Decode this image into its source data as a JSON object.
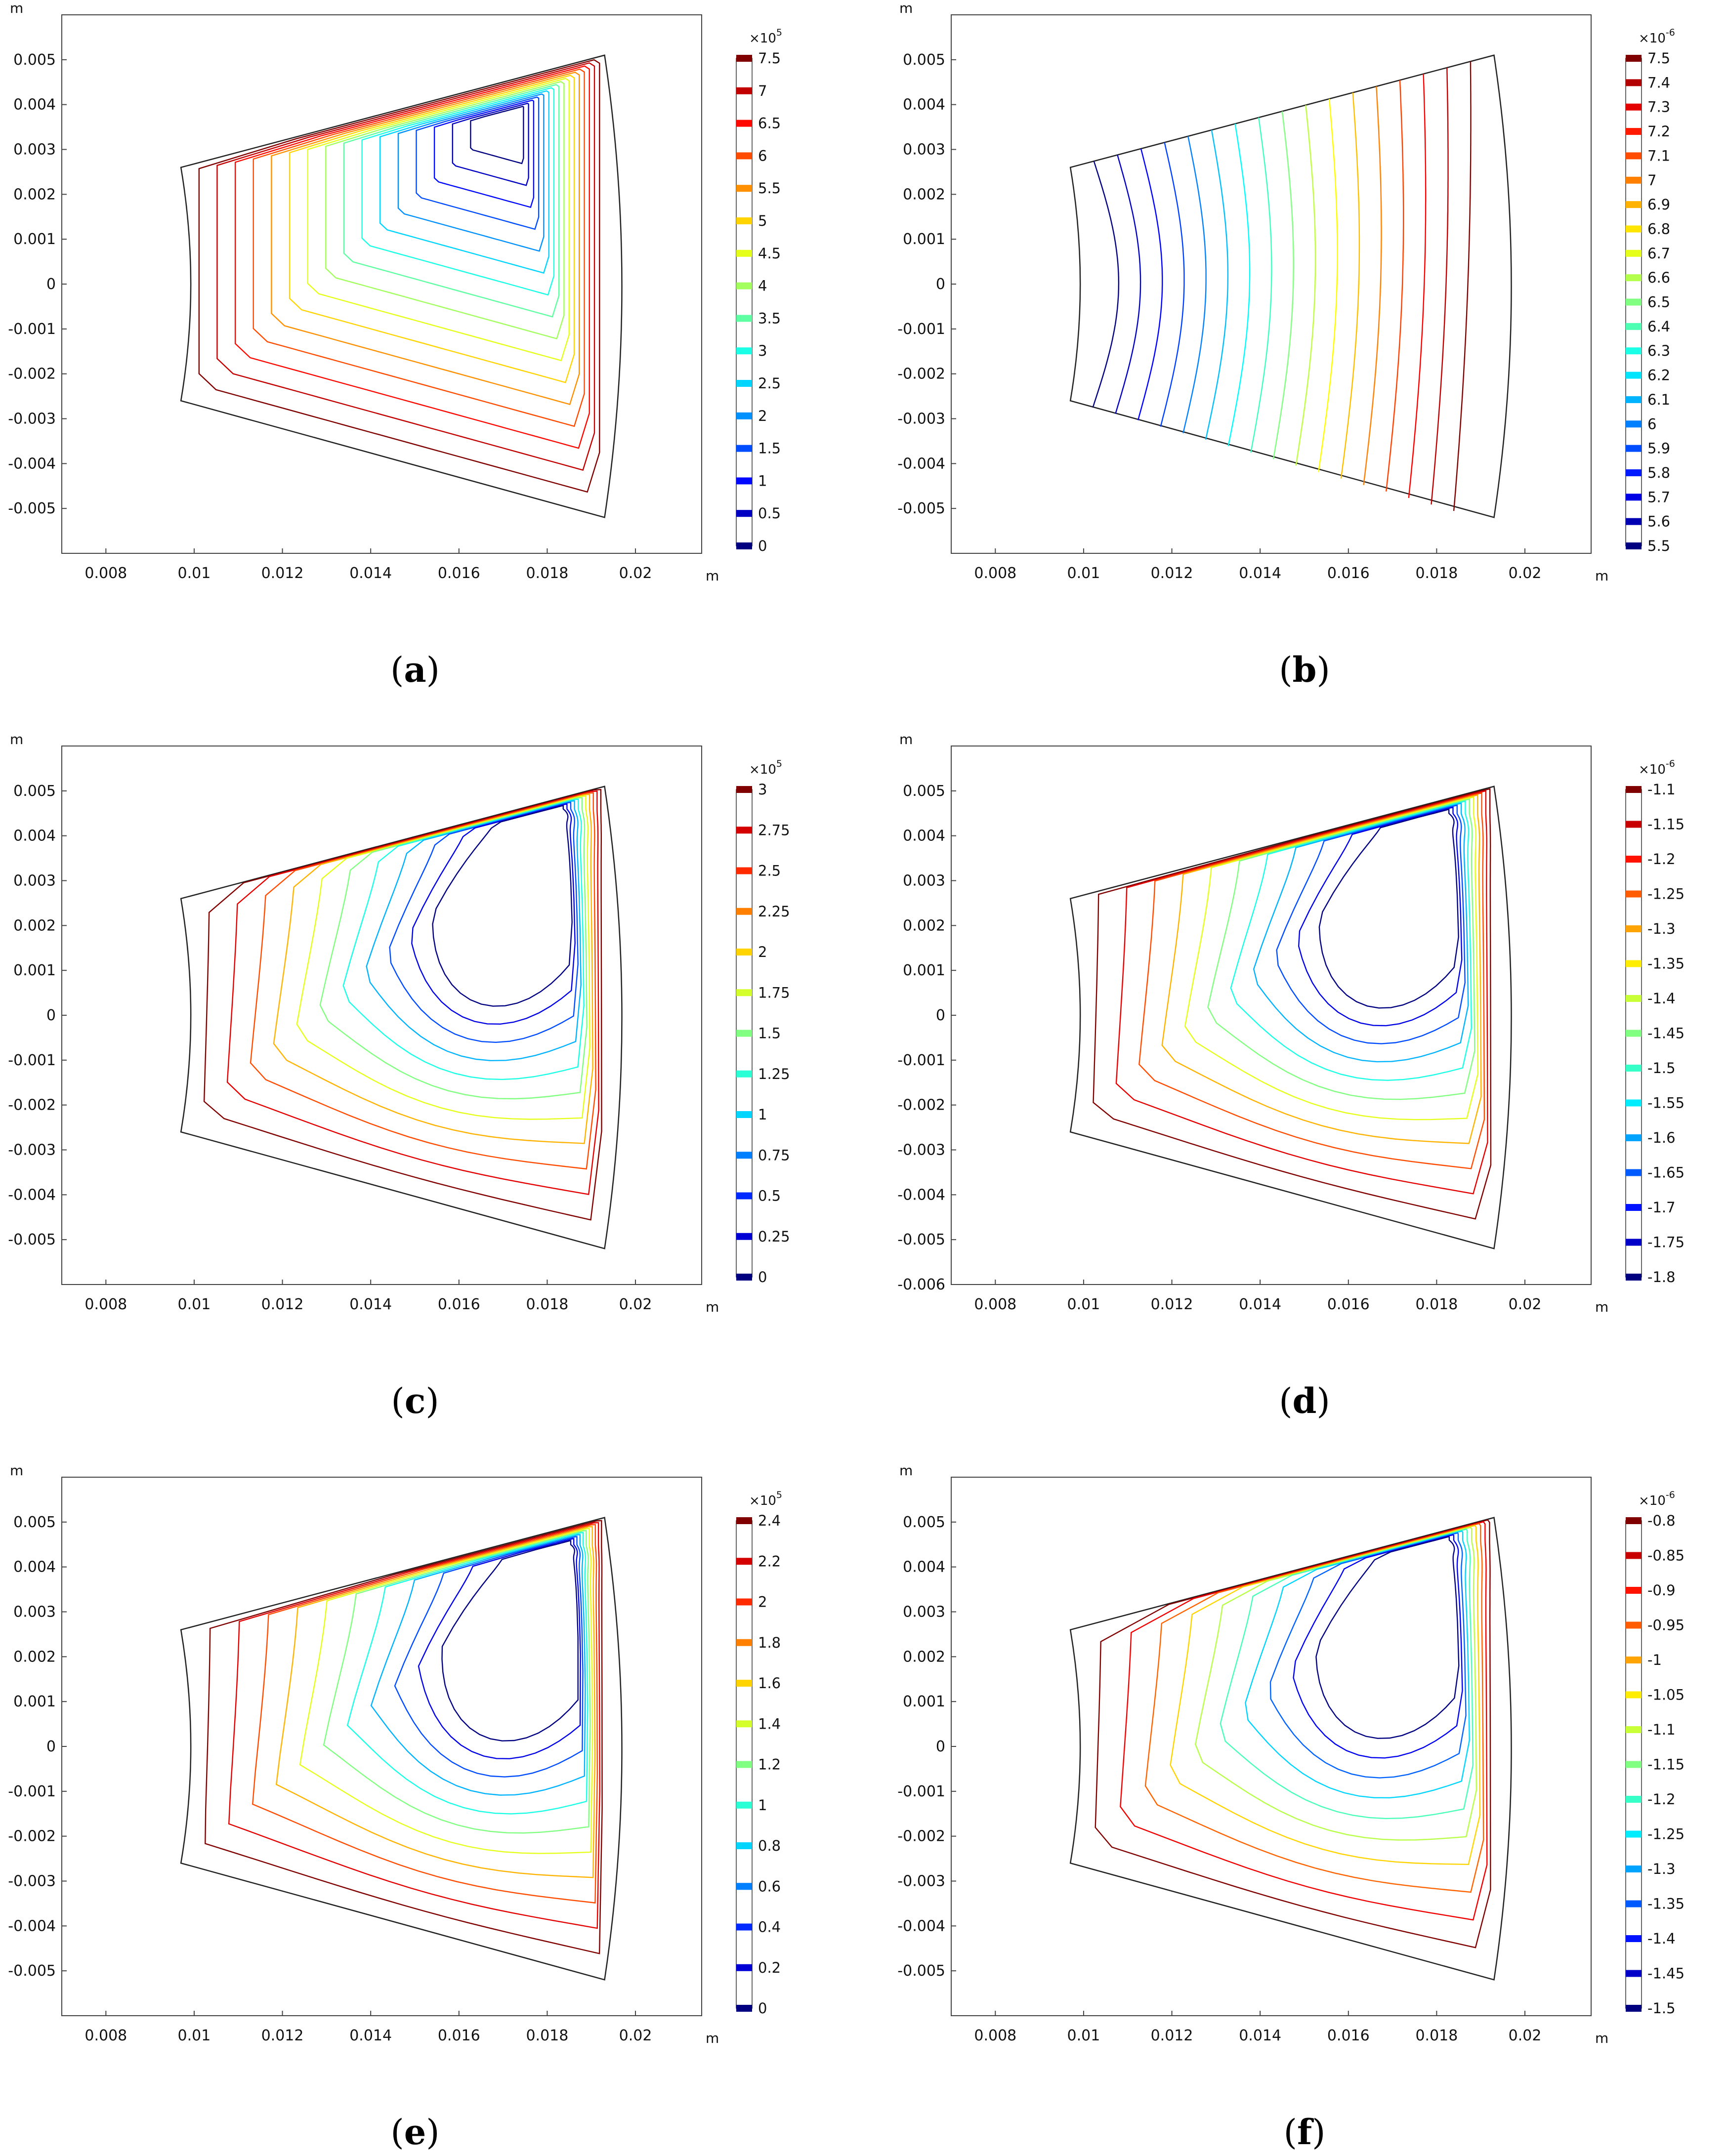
{
  "figure": {
    "unit_label": "m"
  },
  "chart_data": [
    {
      "panel": "a",
      "caption_letter": "a",
      "type": "contour",
      "xlim": [
        0.007,
        0.0215
      ],
      "ylim": [
        -0.006,
        0.006
      ],
      "xticks": [
        "0.008",
        "0.01",
        "0.012",
        "0.014",
        "0.016",
        "0.018",
        "0.02"
      ],
      "yticks": [
        "0.005",
        "0.004",
        "0.003",
        "0.002",
        "0.001",
        "0",
        "-0.001",
        "-0.002",
        "-0.003",
        "-0.004",
        "-0.005"
      ],
      "xlabel": "m",
      "ylabel": "m",
      "colorbar": {
        "exponent_text": "×10",
        "exponent": "5",
        "levels": [
          "7.5",
          "7",
          "6.5",
          "6",
          "5.5",
          "5",
          "4.5",
          "4",
          "3.5",
          "3",
          "2.5",
          "2",
          "1.5",
          "1",
          "0.5",
          "0"
        ]
      },
      "pattern": "core",
      "cx": 0.0172,
      "cy": 0.0038,
      "nContours": 16
    },
    {
      "panel": "b",
      "caption_letter": "b",
      "type": "contour",
      "xlim": [
        0.007,
        0.0215
      ],
      "ylim": [
        -0.006,
        0.006
      ],
      "xticks": [
        "0.008",
        "0.01",
        "0.012",
        "0.014",
        "0.016",
        "0.018",
        "0.02"
      ],
      "yticks": [
        "0.005",
        "0.004",
        "0.003",
        "0.002",
        "0.001",
        "0",
        "-0.001",
        "-0.002",
        "-0.003",
        "-0.004",
        "-0.005"
      ],
      "xlabel": "m",
      "ylabel": "m",
      "colorbar": {
        "exponent_text": "×10",
        "exponent": "-6",
        "levels": [
          "7.5",
          "7.4",
          "7.3",
          "7.2",
          "7.1",
          "7",
          "6.9",
          "6.8",
          "6.7",
          "6.6",
          "6.5",
          "6.4",
          "6.3",
          "6.2",
          "6.1",
          "6",
          "5.9",
          "5.8",
          "5.7",
          "5.6",
          "5.5"
        ]
      },
      "pattern": "vertical",
      "nContours": 17
    },
    {
      "panel": "c",
      "caption_letter": "c",
      "type": "contour",
      "xlim": [
        0.007,
        0.0215
      ],
      "ylim": [
        -0.006,
        0.006
      ],
      "xticks": [
        "0.008",
        "0.01",
        "0.012",
        "0.014",
        "0.016",
        "0.018",
        "0.02"
      ],
      "yticks": [
        "0.005",
        "0.004",
        "0.003",
        "0.002",
        "0.001",
        "0",
        "-0.001",
        "-0.002",
        "-0.003",
        "-0.004",
        "-0.005"
      ],
      "xlabel": "m",
      "ylabel": "m",
      "colorbar": {
        "exponent_text": "×10",
        "exponent": "5",
        "levels": [
          "3",
          "2.75",
          "2.5",
          "2.25",
          "2",
          "1.75",
          "1.5",
          "1.25",
          "1",
          "0.75",
          "0.5",
          "0.25",
          "0"
        ]
      },
      "pattern": "u",
      "cx": 0.0182,
      "cy": 0.0046,
      "nContours": 11
    },
    {
      "panel": "d",
      "caption_letter": "d",
      "type": "contour",
      "xlim": [
        0.007,
        0.0215
      ],
      "ylim": [
        -0.006,
        0.006
      ],
      "xticks": [
        "0.008",
        "0.01",
        "0.012",
        "0.014",
        "0.016",
        "0.018",
        "0.02"
      ],
      "yticks": [
        "0.005",
        "0.004",
        "0.003",
        "0.002",
        "0.001",
        "0",
        "-0.001",
        "-0.002",
        "-0.003",
        "-0.004",
        "-0.005",
        "-0.006"
      ],
      "xlabel": "m",
      "ylabel": "m",
      "colorbar": {
        "exponent_text": "×10",
        "exponent": "-6",
        "levels": [
          "-1.1",
          "-1.15",
          "-1.2",
          "-1.25",
          "-1.3",
          "-1.35",
          "-1.4",
          "-1.45",
          "-1.5",
          "-1.55",
          "-1.6",
          "-1.65",
          "-1.7",
          "-1.75",
          "-1.8"
        ]
      },
      "pattern": "u",
      "cx": 0.0181,
      "cy": 0.0045,
      "nContours": 11
    },
    {
      "panel": "e",
      "caption_letter": "e",
      "type": "contour",
      "xlim": [
        0.007,
        0.0215
      ],
      "ylim": [
        -0.006,
        0.006
      ],
      "xticks": [
        "0.008",
        "0.01",
        "0.012",
        "0.014",
        "0.016",
        "0.018",
        "0.02"
      ],
      "yticks": [
        "0.005",
        "0.004",
        "0.003",
        "0.002",
        "0.001",
        "0",
        "-0.001",
        "-0.002",
        "-0.003",
        "-0.004",
        "-0.005"
      ],
      "xlabel": "m",
      "ylabel": "m",
      "colorbar": {
        "exponent_text": "×10",
        "exponent": "5",
        "levels": [
          "2.4",
          "2.2",
          "2",
          "1.8",
          "1.6",
          "1.4",
          "1.2",
          "1",
          "0.8",
          "0.6",
          "0.4",
          "0.2",
          "0"
        ]
      },
      "pattern": "u",
      "cx": 0.0184,
      "cy": 0.0045,
      "nContours": 11
    },
    {
      "panel": "f",
      "caption_letter": "f",
      "type": "contour",
      "xlim": [
        0.007,
        0.0215
      ],
      "ylim": [
        -0.006,
        0.006
      ],
      "xticks": [
        "0.008",
        "0.01",
        "0.012",
        "0.014",
        "0.016",
        "0.018",
        "0.02"
      ],
      "yticks": [
        "0.005",
        "0.004",
        "0.003",
        "0.002",
        "0.001",
        "0",
        "-0.001",
        "-0.002",
        "-0.003",
        "-0.004",
        "-0.005"
      ],
      "xlabel": "m",
      "ylabel": "m",
      "colorbar": {
        "exponent_text": "×10",
        "exponent": "-6",
        "levels": [
          "-0.8",
          "-0.85",
          "-0.9",
          "-0.95",
          "-1",
          "-1.05",
          "-1.1",
          "-1.15",
          "-1.2",
          "-1.25",
          "-1.3",
          "-1.35",
          "-1.4",
          "-1.45",
          "-1.5"
        ]
      },
      "pattern": "u",
      "cx": 0.0181,
      "cy": 0.0046,
      "nContours": 10
    }
  ]
}
